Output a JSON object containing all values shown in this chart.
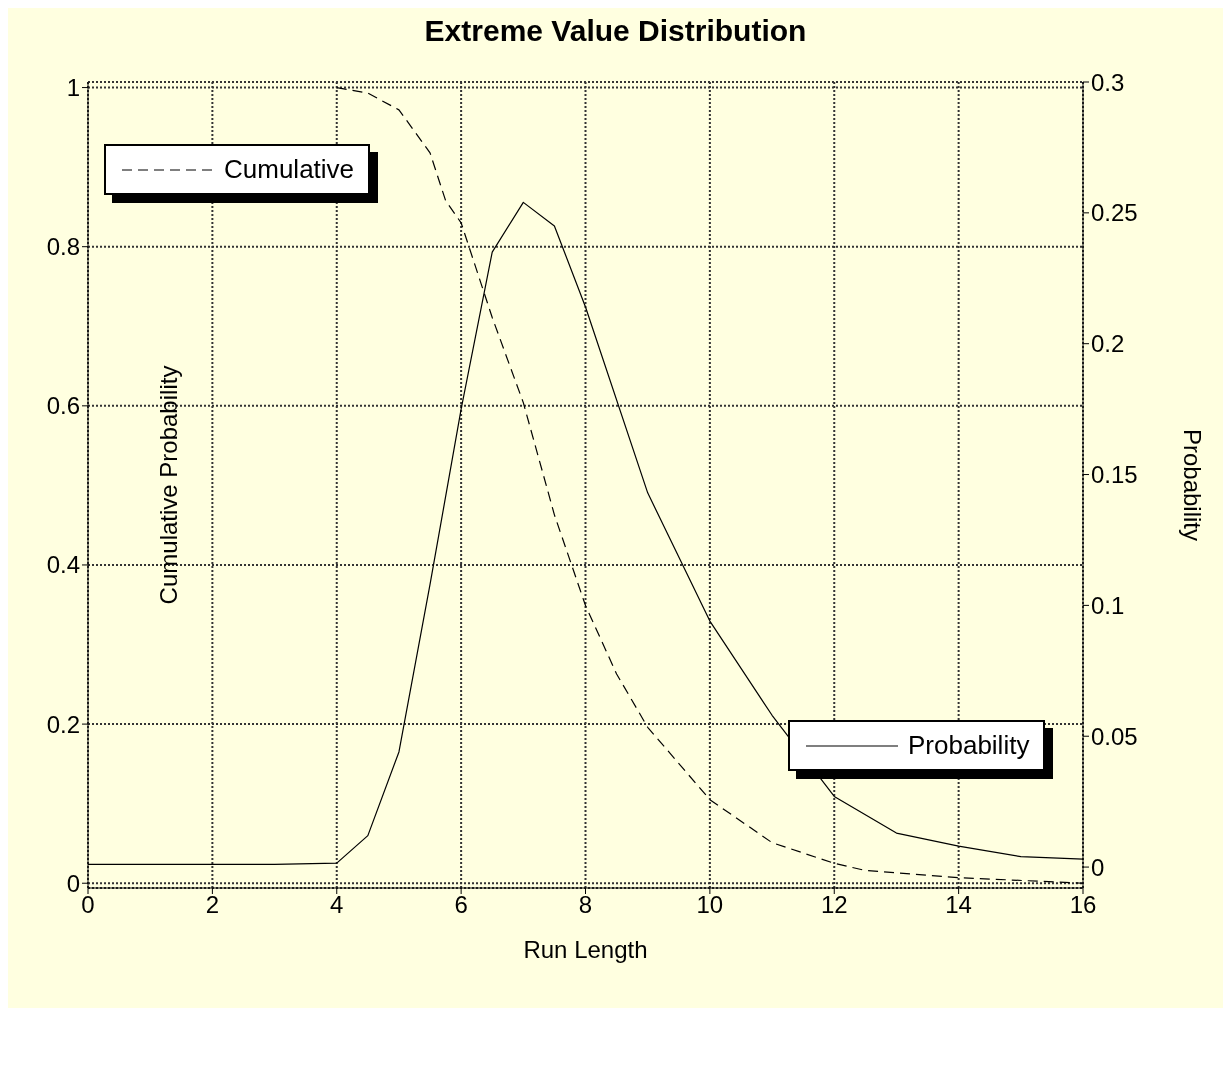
{
  "chart_data": {
    "type": "line",
    "title": "Extreme Value Distribution",
    "xlabel": "Run Length",
    "ylabel": "Cumulative Probability",
    "y2label": "Probability",
    "xlim": [
      0,
      16
    ],
    "xticks": [
      0,
      2,
      4,
      6,
      8,
      10,
      12,
      14,
      16
    ],
    "ylim": [
      -0.006,
      1.007
    ],
    "yticks": [
      0,
      0.2,
      0.4,
      0.6,
      0.8,
      1
    ],
    "y2lim": [
      -0.008,
      0.3
    ],
    "y2ticks": [
      0,
      0.05,
      0.1,
      0.15,
      0.2,
      0.25,
      0.3
    ],
    "grid": true,
    "legend": "top left",
    "marker": "none",
    "series": [
      {
        "name": "Cumulative",
        "color": "#000000",
        "line_style": "dashed",
        "x": [
          4,
          4.5,
          5,
          5.5,
          5.75,
          6,
          6.5,
          7,
          7.5,
          8,
          8.25,
          8.5,
          9,
          10,
          11,
          12,
          12.5,
          14,
          16
        ],
        "values": [
          1.0,
          0.993,
          0.972,
          0.918,
          0.858,
          0.83,
          0.711,
          0.604,
          0.463,
          0.349,
          0.306,
          0.263,
          0.196,
          0.105,
          0.051,
          0.025,
          0.016,
          0.007,
          0.0
        ]
      },
      {
        "name": "Probability",
        "color": "#000000",
        "line_style": "solid",
        "axis": "y2",
        "x": [
          0,
          1,
          2,
          3,
          4,
          4.5,
          5,
          5.5,
          6,
          6.5,
          7,
          7.5,
          8,
          9,
          10,
          11,
          12,
          13,
          14,
          15,
          16
        ],
        "values": [
          0.001,
          0.001,
          0.001,
          0.001,
          0.0015,
          0.012,
          0.044,
          0.108,
          0.175,
          0.235,
          0.254,
          0.245,
          0.214,
          0.143,
          0.094,
          0.058,
          0.027,
          0.013,
          0.008,
          0.004,
          0.003
        ]
      }
    ]
  }
}
